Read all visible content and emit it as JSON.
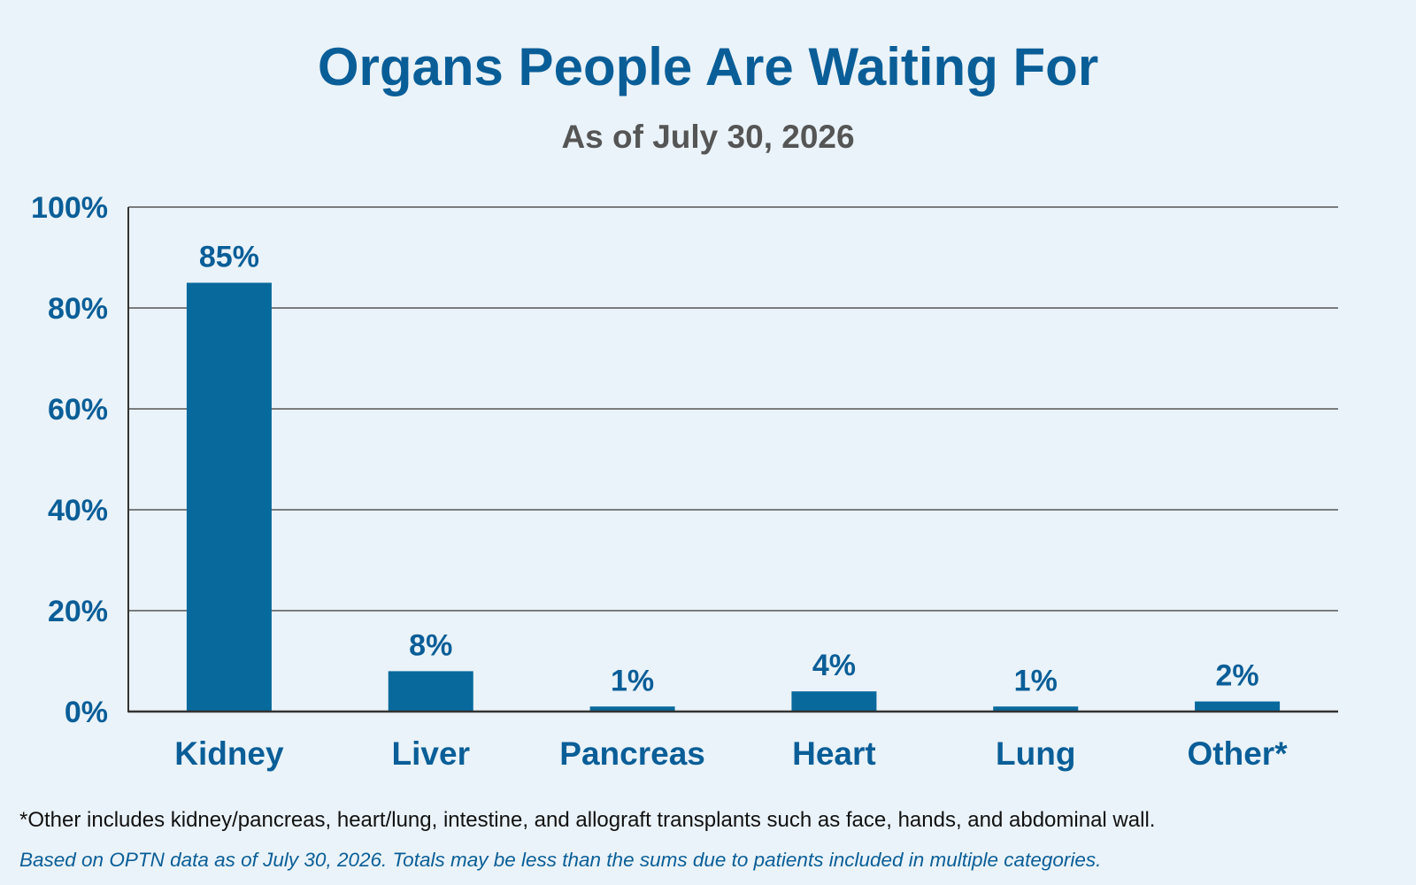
{
  "chart_data": {
    "type": "bar",
    "title": "Organs People Are Waiting For",
    "subtitle": "As of July 30, 2026",
    "xlabel": "",
    "ylabel": "",
    "categories": [
      "Kidney",
      "Liver",
      "Pancreas",
      "Heart",
      "Lung",
      "Other*"
    ],
    "values": [
      85,
      8,
      1,
      4,
      1,
      2
    ],
    "value_labels": [
      "85%",
      "8%",
      "1%",
      "4%",
      "1%",
      "2%"
    ],
    "ylim": [
      0,
      100
    ],
    "yticks": [
      0,
      20,
      40,
      60,
      80,
      100
    ],
    "ytick_labels": [
      "0%",
      "20%",
      "40%",
      "60%",
      "80%",
      "100%"
    ],
    "grid": true,
    "legend": "none",
    "bar_color": "#08699D",
    "text_color": "#0A5E98",
    "subtitle_color": "#555555"
  },
  "notes": {
    "footnote": "*Other includes kidney/pancreas, heart/lung, intestine, and allograft transplants such as face, hands, and abdominal wall.",
    "source": "Based on OPTN data as of July 30, 2026. Totals may be less than the sums due to patients included in multiple categories."
  }
}
